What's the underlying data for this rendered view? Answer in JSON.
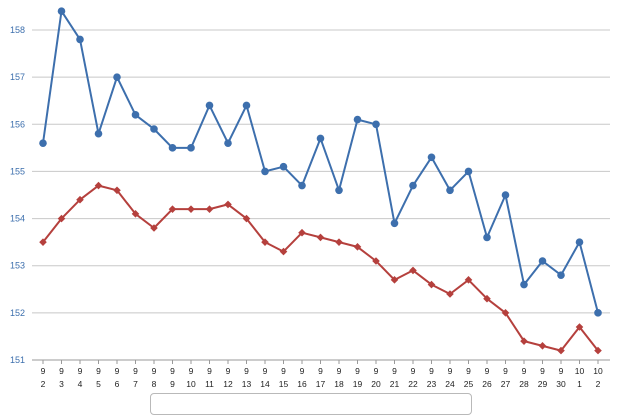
{
  "chart_data": {
    "type": "line",
    "x": [
      {
        "month": "9",
        "day": "2"
      },
      {
        "month": "9",
        "day": "3"
      },
      {
        "month": "9",
        "day": "4"
      },
      {
        "month": "9",
        "day": "5"
      },
      {
        "month": "9",
        "day": "6"
      },
      {
        "month": "9",
        "day": "7"
      },
      {
        "month": "9",
        "day": "8"
      },
      {
        "month": "9",
        "day": "9"
      },
      {
        "month": "9",
        "day": "10"
      },
      {
        "month": "9",
        "day": "11"
      },
      {
        "month": "9",
        "day": "12"
      },
      {
        "month": "9",
        "day": "13"
      },
      {
        "month": "9",
        "day": "14"
      },
      {
        "month": "9",
        "day": "15"
      },
      {
        "month": "9",
        "day": "16"
      },
      {
        "month": "9",
        "day": "17"
      },
      {
        "month": "9",
        "day": "18"
      },
      {
        "month": "9",
        "day": "19"
      },
      {
        "month": "9",
        "day": "20"
      },
      {
        "month": "9",
        "day": "21"
      },
      {
        "month": "9",
        "day": "22"
      },
      {
        "month": "9",
        "day": "23"
      },
      {
        "month": "9",
        "day": "24"
      },
      {
        "month": "9",
        "day": "25"
      },
      {
        "month": "9",
        "day": "26"
      },
      {
        "month": "9",
        "day": "27"
      },
      {
        "month": "9",
        "day": "28"
      },
      {
        "month": "9",
        "day": "29"
      },
      {
        "month": "9",
        "day": "30"
      },
      {
        "month": "10",
        "day": "1"
      },
      {
        "month": "10",
        "day": "2"
      }
    ],
    "series": [
      {
        "marker": "circle",
        "color": "#3d6fad",
        "values": [
          155.6,
          158.4,
          157.8,
          155.8,
          157.0,
          156.2,
          155.9,
          155.5,
          155.5,
          156.4,
          155.6,
          156.4,
          155.0,
          155.1,
          154.7,
          155.7,
          154.6,
          156.1,
          156.0,
          153.9,
          154.7,
          155.3,
          154.6,
          155.0,
          153.6,
          154.5,
          152.6,
          153.1,
          152.8,
          153.5,
          152.0
        ]
      },
      {
        "marker": "diamond",
        "color": "#b5403d",
        "values": [
          153.5,
          154.0,
          154.4,
          154.7,
          154.6,
          154.1,
          153.8,
          154.2,
          154.2,
          154.2,
          154.3,
          154.0,
          153.5,
          153.3,
          153.7,
          153.6,
          153.5,
          153.4,
          153.1,
          152.7,
          152.9,
          152.6,
          152.4,
          152.7,
          152.3,
          152.0,
          151.4,
          151.3,
          151.2,
          151.7,
          151.2
        ]
      }
    ],
    "y_ticks": [
      "151",
      "152",
      "153",
      "154",
      "155",
      "156",
      "157",
      "158"
    ],
    "ylim": [
      151,
      158.6
    ],
    "grid": "horizontal",
    "title": "",
    "xlabel": "",
    "ylabel": ""
  },
  "colors": {
    "grid": "#c8c8c8",
    "axis": "#9a9a9a",
    "ytick_text": "#3d6fad"
  }
}
